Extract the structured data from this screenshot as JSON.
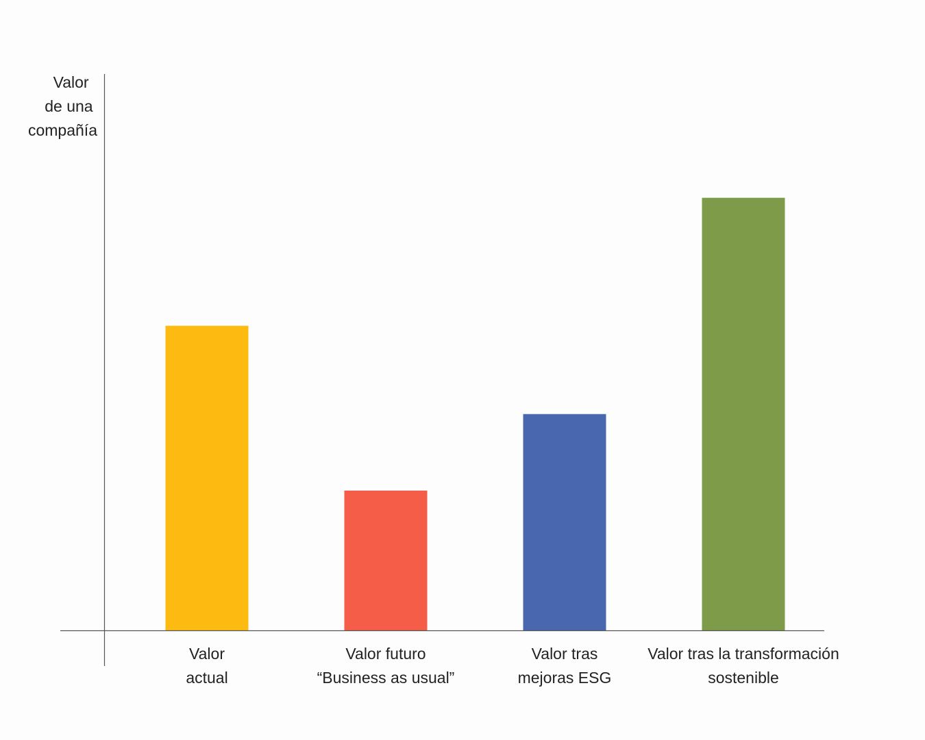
{
  "chart_data": {
    "type": "bar",
    "ylabel": [
      "Valor",
      "de una",
      "compañía"
    ],
    "categories": [
      [
        "Valor",
        "actual"
      ],
      [
        "Valor futuro",
        "“Business as usual”"
      ],
      [
        "Valor tras",
        "mejoras ESG"
      ],
      [
        "Valor tras la transformación",
        "sostenible"
      ]
    ],
    "values": [
      438,
      201,
      311,
      622
    ],
    "colors": [
      "#fdbb11",
      "#f55d48",
      "#4967ae",
      "#7e9b4a"
    ],
    "ylim": [
      0,
      800
    ],
    "yticks": "none",
    "grid": false,
    "legend": "none",
    "axis_color": "#555555"
  }
}
